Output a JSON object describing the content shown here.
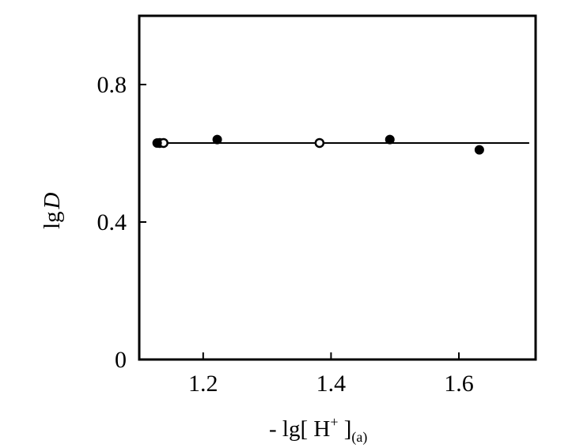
{
  "chart_data": {
    "type": "scatter",
    "xlabel_parts": [
      "- lg[ H",
      "+",
      " ]",
      "(a)"
    ],
    "ylabel_parts": [
      "lg",
      "D"
    ],
    "xlim": [
      1.1,
      1.72
    ],
    "ylim": [
      0,
      1.0
    ],
    "x_ticks": [
      1.2,
      1.4,
      1.6
    ],
    "x_tick_labels": [
      "1.2",
      "1.4",
      "1.6"
    ],
    "y_ticks": [
      0,
      0.4,
      0.8
    ],
    "y_tick_labels": [
      "0",
      "0.4",
      "0.8"
    ],
    "grid": false,
    "series": [
      {
        "marker": "open-circle",
        "points": [
          {
            "x": 1.132,
            "y": 0.63
          },
          {
            "x": 1.138,
            "y": 0.63
          },
          {
            "x": 1.382,
            "y": 0.63
          }
        ]
      },
      {
        "marker": "filled-circle",
        "points": [
          {
            "x": 1.128,
            "y": 0.63
          },
          {
            "x": 1.222,
            "y": 0.64
          },
          {
            "x": 1.492,
            "y": 0.64
          },
          {
            "x": 1.632,
            "y": 0.61
          }
        ]
      }
    ],
    "fit_line": {
      "x": [
        1.128,
        1.71
      ],
      "y": [
        0.63,
        0.63
      ]
    },
    "colors": {
      "ink": "#000000",
      "background": "#ffffff"
    }
  }
}
